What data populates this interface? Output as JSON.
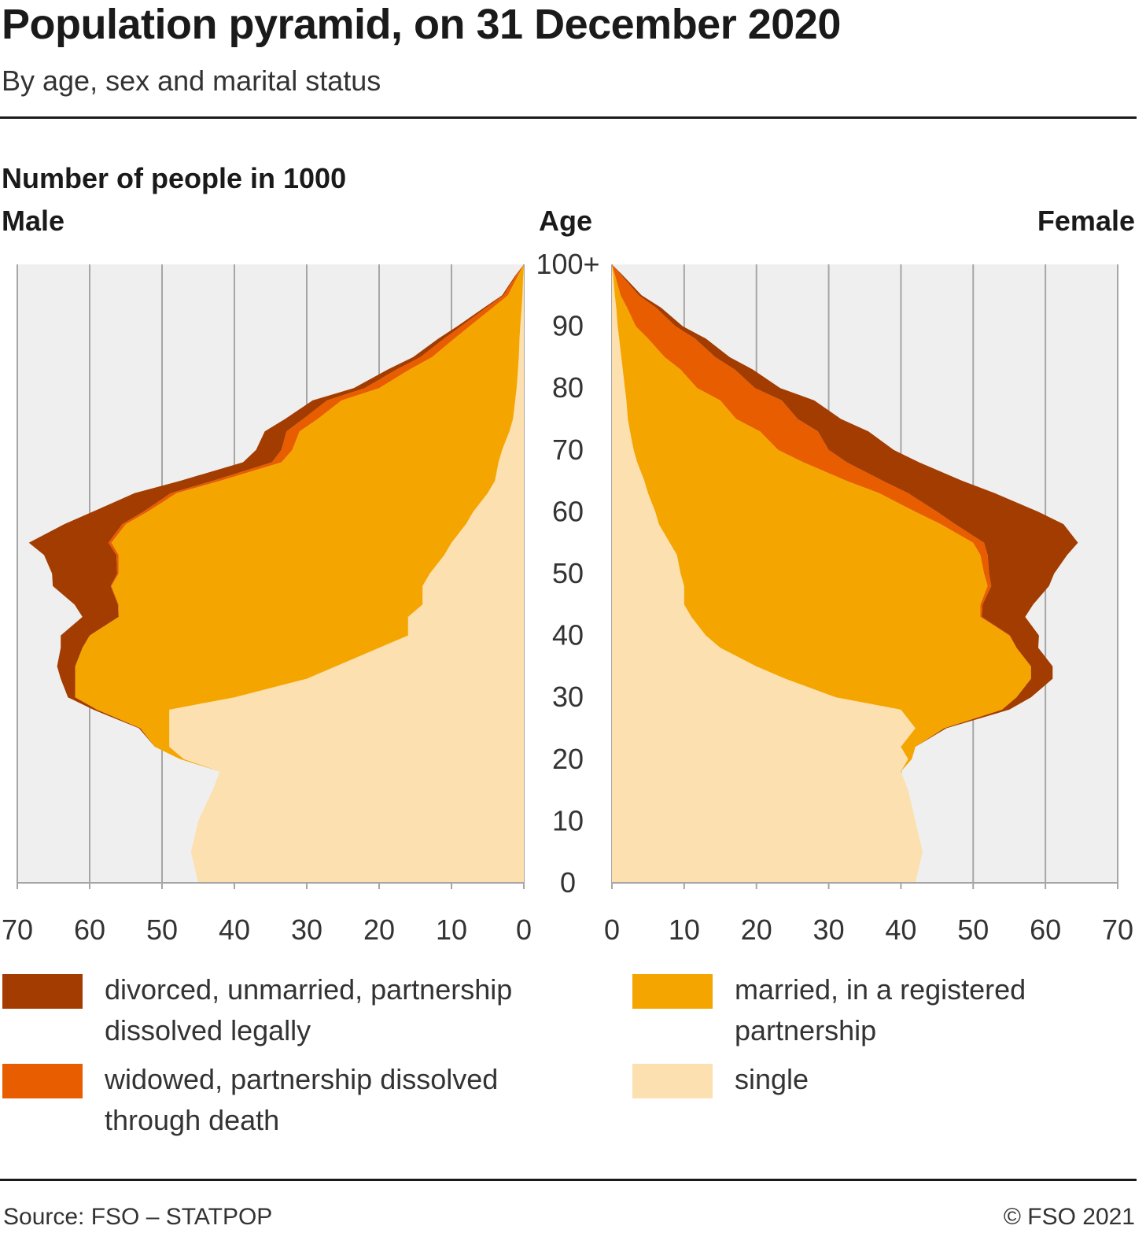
{
  "title": "Population pyramid, on 31 December 2020",
  "subtitle": "By age, sex and marital status",
  "unit_label": "Number of people in 1000",
  "male_label": "Male",
  "female_label": "Female",
  "age_label": "Age",
  "source": "Source: FSO – STATPOP",
  "copyright": "© FSO 2021",
  "colors": {
    "divorced": "#a33c00",
    "widowed": "#e85d00",
    "married": "#f5a500",
    "single": "#fde0b0",
    "panel": "#efefef",
    "grid": "#a6a6a6"
  },
  "legend": [
    {
      "key": "divorced",
      "label": "divorced, unmarried, partnership dissolved legally"
    },
    {
      "key": "married",
      "label": "married, in a registered partnership"
    },
    {
      "key": "widowed",
      "label": "widowed, partnership dissolved through death"
    },
    {
      "key": "single",
      "label": "single"
    }
  ],
  "chart_data": {
    "type": "area",
    "subtype": "population-pyramid",
    "title": "Population pyramid, on 31 December 2020",
    "subtitle": "By age, sex and marital status",
    "value_unit": "Number of people in 1000",
    "age_axis": {
      "label": "Age",
      "ticks": [
        "0",
        "10",
        "20",
        "30",
        "40",
        "50",
        "60",
        "70",
        "80",
        "90",
        "100+"
      ],
      "range": [
        0,
        100
      ]
    },
    "value_axis": {
      "range": [
        0,
        70
      ],
      "ticks": [
        0,
        10,
        20,
        30,
        40,
        50,
        60,
        70
      ]
    },
    "stack_order": [
      "single",
      "married",
      "widowed",
      "divorced"
    ],
    "ages": [
      0,
      5,
      10,
      15,
      18,
      20,
      22,
      25,
      28,
      30,
      33,
      35,
      38,
      40,
      43,
      45,
      48,
      50,
      53,
      55,
      58,
      60,
      63,
      65,
      68,
      70,
      73,
      75,
      78,
      80,
      83,
      85,
      88,
      90,
      93,
      95,
      98,
      100
    ],
    "male": {
      "single": [
        45,
        46,
        45,
        43,
        42,
        47,
        49,
        49,
        49,
        40,
        30,
        26,
        20,
        16,
        16,
        14,
        14,
        13,
        11,
        10,
        8,
        7,
        5,
        4,
        3.5,
        3,
        2,
        1.5,
        1.2,
        1,
        0.8,
        0.7,
        0.6,
        0.5,
        0.3,
        0.2,
        0.1,
        0
      ],
      "married": [
        0,
        0,
        0,
        0,
        0,
        0.5,
        2,
        4,
        10,
        22,
        32,
        36,
        41,
        44,
        40,
        42,
        43,
        43,
        45,
        47,
        47,
        45,
        43,
        38,
        30,
        29,
        29,
        27,
        24,
        19,
        15,
        12,
        9,
        7,
        4,
        2,
        0.8,
        0
      ],
      "widowed": [
        0,
        0,
        0,
        0,
        0,
        0,
        0,
        0,
        0,
        0,
        0,
        0,
        0,
        0,
        0,
        0.1,
        0.1,
        0.2,
        0.3,
        0.4,
        0.5,
        0.6,
        0.8,
        1,
        1.3,
        1.5,
        1.8,
        2,
        2,
        2,
        1.8,
        1.6,
        1.4,
        1.2,
        0.9,
        0.6,
        0.3,
        0
      ],
      "divorced": [
        0,
        0,
        0,
        0,
        0,
        0,
        0,
        0.2,
        0.5,
        1,
        2,
        2.5,
        3,
        4,
        5,
        6,
        8,
        9,
        10,
        11,
        8,
        7,
        5,
        4.5,
        4,
        3.5,
        3,
        2.5,
        2,
        1.5,
        1.2,
        1,
        0.8,
        0.5,
        0.3,
        0.2,
        0.1,
        0
      ]
    },
    "female": {
      "single": [
        42,
        43,
        42,
        41,
        40,
        41,
        40,
        42,
        40,
        31,
        24,
        20,
        15,
        13,
        11,
        10,
        10,
        9.5,
        9,
        8,
        6.5,
        6,
        5,
        4.5,
        3.5,
        3,
        2.5,
        2.2,
        2,
        1.8,
        1.5,
        1.3,
        1,
        0.8,
        0.6,
        0.4,
        0.2,
        0
      ],
      "married": [
        0,
        0,
        0,
        0,
        0,
        0.5,
        2,
        4,
        14,
        25,
        34,
        38,
        41,
        42,
        40,
        41,
        42,
        42,
        42,
        42,
        39,
        36,
        32,
        28,
        23,
        20,
        18,
        15,
        13,
        10,
        8,
        6,
        4,
        2.5,
        1.5,
        0.8,
        0.3,
        0
      ],
      "widowed": [
        0,
        0,
        0,
        0,
        0,
        0,
        0,
        0,
        0,
        0,
        0,
        0,
        0,
        0.1,
        0.2,
        0.3,
        0.5,
        0.7,
        1,
        1.5,
        2,
        3,
        4,
        5,
        6,
        7,
        8,
        8.5,
        8.5,
        8,
        7.5,
        7,
        6.5,
        5.5,
        4,
        2.5,
        1,
        0
      ],
      "divorced": [
        0,
        0,
        0,
        0,
        0,
        0,
        0,
        0.3,
        1,
        2,
        3,
        3,
        3,
        4,
        6,
        7,
        8,
        9,
        11,
        13,
        15,
        14,
        12,
        11,
        10,
        9,
        7,
        6,
        4.5,
        3.5,
        2.5,
        2,
        1.5,
        1,
        0.7,
        0.4,
        0.2,
        0
      ]
    }
  }
}
